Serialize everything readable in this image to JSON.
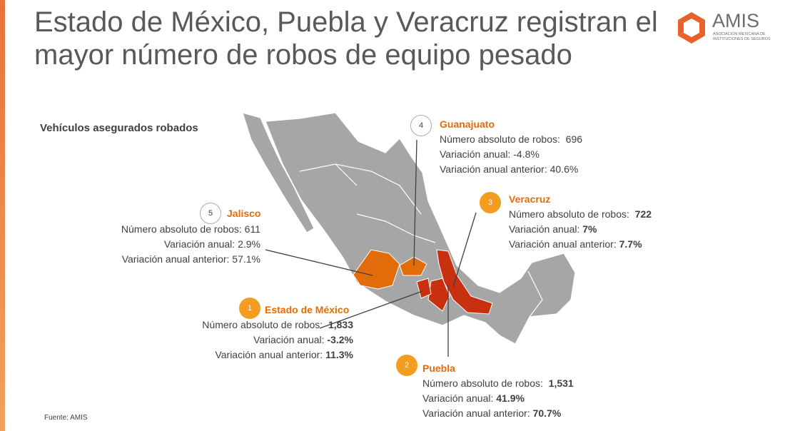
{
  "header": {
    "title": "Estado de México, Puebla y Veracruz registran el mayor número de robos de equipo pesado",
    "logo": {
      "name": "AMIS",
      "line1": "ASOCIACIÓN MEXICANA DE",
      "line2": "INSTITUCIONES DE SEGUROS"
    }
  },
  "subtitle": "Vehículos asegurados robados",
  "callouts": [
    {
      "rank": "1",
      "state": "Estado de México",
      "rows": [
        [
          "Número absoluto de robos:",
          "1,833"
        ],
        [
          "Variación anual:",
          "-3.2%"
        ],
        [
          "Variación anual anterior:",
          "11.3%"
        ]
      ]
    },
    {
      "rank": "2",
      "state": "Puebla",
      "rows": [
        [
          "Número absoluto de robos:",
          "1,531"
        ],
        [
          "Variación anual:",
          "41.9%"
        ],
        [
          "Variación anual anterior:",
          "70.7%"
        ]
      ]
    },
    {
      "rank": "3",
      "state": "Veracruz",
      "rows": [
        [
          "Número absoluto de robos:",
          "722"
        ],
        [
          "Variación anual:",
          "7%"
        ],
        [
          "Variación anual anterior:",
          "7.7%"
        ]
      ]
    },
    {
      "rank": "4",
      "state": "Guanajuato",
      "rows": [
        [
          "Número absoluto de robos:",
          "696"
        ],
        [
          "Variación anual:",
          "-4.8%"
        ],
        [
          "Variación anual anterior:",
          "40.6%"
        ]
      ]
    },
    {
      "rank": "5",
      "state": "Jalisco",
      "rows": [
        [
          "Número absoluto de robos:",
          "611"
        ],
        [
          "Variación anual:",
          "2.9%"
        ],
        [
          "Variación anual anterior:",
          "57.1%"
        ]
      ]
    }
  ],
  "source": "Fuente:  AMIS"
}
